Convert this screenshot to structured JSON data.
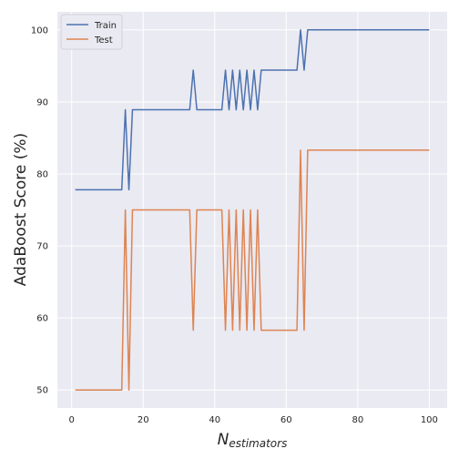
{
  "chart_data": {
    "type": "line",
    "xlabel_main": "N",
    "xlabel_sub": "estimators",
    "ylabel": "AdaBoost Score (%)",
    "xlim": [
      -4,
      105
    ],
    "ylim": [
      47.5,
      102.5
    ],
    "xticks": [
      0,
      20,
      40,
      60,
      80,
      100
    ],
    "yticks": [
      50,
      60,
      70,
      80,
      90,
      100
    ],
    "grid": true,
    "legend_position": "upper left",
    "series": [
      {
        "name": "Train",
        "color": "#4c72b0",
        "x": [
          1,
          14,
          15,
          16,
          17,
          33,
          34,
          35,
          42,
          43,
          44,
          45,
          46,
          47,
          48,
          49,
          50,
          51,
          52,
          53,
          63,
          64,
          65,
          66,
          100
        ],
        "y": [
          77.8,
          77.8,
          88.9,
          77.8,
          88.9,
          88.9,
          94.4,
          88.9,
          88.9,
          94.4,
          88.9,
          94.4,
          88.9,
          94.4,
          88.9,
          94.4,
          88.9,
          94.4,
          88.9,
          94.4,
          94.4,
          100,
          94.4,
          100,
          100
        ]
      },
      {
        "name": "Test",
        "color": "#dd8452",
        "x": [
          1,
          14,
          15,
          16,
          17,
          33,
          34,
          35,
          42,
          43,
          44,
          45,
          46,
          47,
          48,
          49,
          50,
          51,
          52,
          53,
          63,
          64,
          65,
          66,
          100
        ],
        "y": [
          50,
          50,
          75,
          50,
          75,
          75,
          58.3,
          75,
          75,
          58.3,
          75,
          58.3,
          75,
          58.3,
          75,
          58.3,
          75,
          58.3,
          75,
          58.3,
          58.3,
          83.3,
          58.3,
          83.3,
          83.3
        ]
      }
    ]
  }
}
